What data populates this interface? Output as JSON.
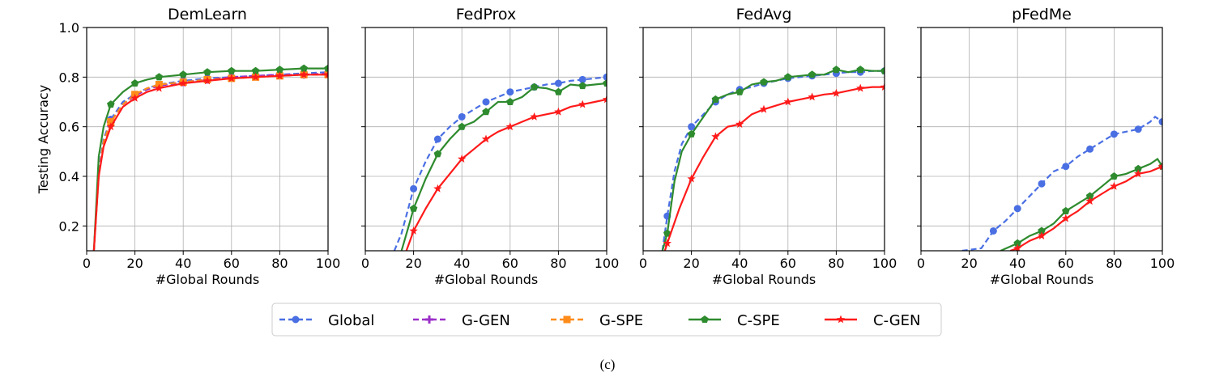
{
  "caption": "(c)",
  "colors": {
    "Global": "#4a6fe3",
    "G-GEN": "#9b2fc9",
    "G-SPE": "#ff8c1a",
    "C-SPE": "#2e8b2e",
    "C-GEN": "#ff1a1a"
  },
  "legend": {
    "placement": "bottom-center",
    "items": [
      {
        "name": "Global",
        "dash": true,
        "marker": "circle"
      },
      {
        "name": "G-GEN",
        "dash": true,
        "marker": "plus"
      },
      {
        "name": "G-SPE",
        "dash": true,
        "marker": "square"
      },
      {
        "name": "C-SPE",
        "dash": false,
        "marker": "pentagon"
      },
      {
        "name": "C-GEN",
        "dash": false,
        "marker": "star"
      }
    ]
  },
  "chart_data": [
    {
      "type": "line",
      "title": "DemLearn",
      "xlabel": "#Global Rounds",
      "ylabel": "Testing Accuracy",
      "xlim": [
        0,
        100
      ],
      "ylim": [
        0.1,
        1.0
      ],
      "xticks": [
        "0",
        "20",
        "40",
        "60",
        "80",
        "100"
      ],
      "yticks": [
        "0.2",
        "0.4",
        "0.6",
        "0.8",
        "1.0"
      ],
      "grid": true,
      "series": [
        {
          "name": "Global",
          "points": [
            [
              3,
              0.1
            ],
            [
              5,
              0.42
            ],
            [
              7,
              0.55
            ],
            [
              10,
              0.63
            ],
            [
              15,
              0.7
            ],
            [
              20,
              0.73
            ],
            [
              25,
              0.755
            ],
            [
              30,
              0.77
            ],
            [
              40,
              0.785
            ],
            [
              50,
              0.795
            ],
            [
              60,
              0.8
            ],
            [
              70,
              0.805
            ],
            [
              80,
              0.81
            ],
            [
              90,
              0.815
            ],
            [
              100,
              0.82
            ]
          ]
        },
        {
          "name": "G-GEN",
          "points": [
            [
              3,
              0.1
            ],
            [
              5,
              0.42
            ],
            [
              7,
              0.54
            ],
            [
              10,
              0.62
            ],
            [
              15,
              0.69
            ],
            [
              20,
              0.725
            ],
            [
              25,
              0.75
            ],
            [
              30,
              0.765
            ],
            [
              40,
              0.78
            ],
            [
              50,
              0.79
            ],
            [
              60,
              0.8
            ],
            [
              70,
              0.805
            ],
            [
              80,
              0.81
            ],
            [
              90,
              0.81
            ],
            [
              100,
              0.815
            ]
          ]
        },
        {
          "name": "G-SPE",
          "points": [
            [
              3,
              0.1
            ],
            [
              5,
              0.4
            ],
            [
              7,
              0.54
            ],
            [
              10,
              0.62
            ],
            [
              15,
              0.69
            ],
            [
              20,
              0.73
            ],
            [
              25,
              0.755
            ],
            [
              30,
              0.77
            ],
            [
              40,
              0.78
            ],
            [
              50,
              0.79
            ],
            [
              60,
              0.795
            ],
            [
              70,
              0.8
            ],
            [
              80,
              0.805
            ],
            [
              90,
              0.81
            ],
            [
              100,
              0.81
            ]
          ]
        },
        {
          "name": "C-SPE",
          "points": [
            [
              3,
              0.1
            ],
            [
              5,
              0.48
            ],
            [
              7,
              0.6
            ],
            [
              10,
              0.69
            ],
            [
              15,
              0.74
            ],
            [
              20,
              0.775
            ],
            [
              25,
              0.79
            ],
            [
              30,
              0.8
            ],
            [
              40,
              0.81
            ],
            [
              50,
              0.82
            ],
            [
              60,
              0.825
            ],
            [
              70,
              0.825
            ],
            [
              80,
              0.83
            ],
            [
              90,
              0.835
            ],
            [
              100,
              0.835
            ]
          ]
        },
        {
          "name": "C-GEN",
          "points": [
            [
              3,
              0.1
            ],
            [
              5,
              0.4
            ],
            [
              7,
              0.52
            ],
            [
              10,
              0.6
            ],
            [
              15,
              0.68
            ],
            [
              20,
              0.715
            ],
            [
              25,
              0.74
            ],
            [
              30,
              0.755
            ],
            [
              40,
              0.775
            ],
            [
              50,
              0.785
            ],
            [
              60,
              0.795
            ],
            [
              70,
              0.8
            ],
            [
              80,
              0.805
            ],
            [
              90,
              0.81
            ],
            [
              100,
              0.81
            ]
          ]
        }
      ]
    },
    {
      "type": "line",
      "title": "FedProx",
      "xlabel": "#Global Rounds",
      "xlim": [
        0,
        100
      ],
      "ylim": [
        0.1,
        1.0
      ],
      "xticks": [
        "0",
        "20",
        "40",
        "60",
        "80",
        "100"
      ],
      "grid": true,
      "series": [
        {
          "name": "Global",
          "points": [
            [
              12,
              0.1
            ],
            [
              15,
              0.17
            ],
            [
              20,
              0.35
            ],
            [
              25,
              0.46
            ],
            [
              30,
              0.55
            ],
            [
              35,
              0.6
            ],
            [
              40,
              0.64
            ],
            [
              45,
              0.67
            ],
            [
              50,
              0.7
            ],
            [
              55,
              0.72
            ],
            [
              60,
              0.74
            ],
            [
              65,
              0.75
            ],
            [
              70,
              0.76
            ],
            [
              75,
              0.77
            ],
            [
              80,
              0.775
            ],
            [
              85,
              0.785
            ],
            [
              90,
              0.79
            ],
            [
              95,
              0.795
            ],
            [
              100,
              0.8
            ]
          ]
        },
        {
          "name": "C-SPE",
          "points": [
            [
              15,
              0.1
            ],
            [
              18,
              0.2
            ],
            [
              20,
              0.27
            ],
            [
              25,
              0.39
            ],
            [
              30,
              0.49
            ],
            [
              35,
              0.55
            ],
            [
              40,
              0.6
            ],
            [
              45,
              0.62
            ],
            [
              50,
              0.66
            ],
            [
              55,
              0.7
            ],
            [
              60,
              0.7
            ],
            [
              65,
              0.72
            ],
            [
              70,
              0.76
            ],
            [
              75,
              0.755
            ],
            [
              80,
              0.74
            ],
            [
              85,
              0.77
            ],
            [
              90,
              0.765
            ],
            [
              95,
              0.77
            ],
            [
              100,
              0.775
            ]
          ]
        },
        {
          "name": "C-GEN",
          "points": [
            [
              17,
              0.1
            ],
            [
              20,
              0.18
            ],
            [
              25,
              0.27
            ],
            [
              30,
              0.35
            ],
            [
              35,
              0.41
            ],
            [
              40,
              0.47
            ],
            [
              45,
              0.51
            ],
            [
              50,
              0.55
            ],
            [
              55,
              0.58
            ],
            [
              60,
              0.6
            ],
            [
              65,
              0.62
            ],
            [
              70,
              0.64
            ],
            [
              75,
              0.65
            ],
            [
              80,
              0.66
            ],
            [
              85,
              0.68
            ],
            [
              90,
              0.69
            ],
            [
              95,
              0.7
            ],
            [
              100,
              0.71
            ]
          ]
        }
      ]
    },
    {
      "type": "line",
      "title": "FedAvg",
      "xlabel": "#Global Rounds",
      "xlim": [
        0,
        100
      ],
      "ylim": [
        0.1,
        1.0
      ],
      "xticks": [
        "0",
        "20",
        "40",
        "60",
        "80",
        "100"
      ],
      "grid": true,
      "series": [
        {
          "name": "Global",
          "points": [
            [
              8,
              0.1
            ],
            [
              10,
              0.24
            ],
            [
              13,
              0.42
            ],
            [
              16,
              0.53
            ],
            [
              20,
              0.6
            ],
            [
              25,
              0.65
            ],
            [
              30,
              0.7
            ],
            [
              35,
              0.73
            ],
            [
              40,
              0.75
            ],
            [
              45,
              0.76
            ],
            [
              50,
              0.775
            ],
            [
              55,
              0.785
            ],
            [
              60,
              0.795
            ],
            [
              65,
              0.8
            ],
            [
              70,
              0.805
            ],
            [
              75,
              0.81
            ],
            [
              80,
              0.815
            ],
            [
              85,
              0.82
            ],
            [
              90,
              0.82
            ],
            [
              95,
              0.825
            ],
            [
              100,
              0.825
            ]
          ]
        },
        {
          "name": "C-SPE",
          "points": [
            [
              8,
              0.1
            ],
            [
              10,
              0.17
            ],
            [
              13,
              0.38
            ],
            [
              16,
              0.5
            ],
            [
              20,
              0.57
            ],
            [
              25,
              0.64
            ],
            [
              30,
              0.71
            ],
            [
              35,
              0.73
            ],
            [
              40,
              0.74
            ],
            [
              45,
              0.77
            ],
            [
              50,
              0.78
            ],
            [
              55,
              0.785
            ],
            [
              60,
              0.8
            ],
            [
              65,
              0.805
            ],
            [
              70,
              0.81
            ],
            [
              75,
              0.81
            ],
            [
              80,
              0.83
            ],
            [
              85,
              0.82
            ],
            [
              90,
              0.83
            ],
            [
              95,
              0.825
            ],
            [
              100,
              0.825
            ]
          ]
        },
        {
          "name": "C-GEN",
          "points": [
            [
              9,
              0.1
            ],
            [
              10,
              0.13
            ],
            [
              15,
              0.27
            ],
            [
              20,
              0.39
            ],
            [
              25,
              0.48
            ],
            [
              30,
              0.56
            ],
            [
              35,
              0.6
            ],
            [
              40,
              0.61
            ],
            [
              45,
              0.65
            ],
            [
              50,
              0.67
            ],
            [
              55,
              0.685
            ],
            [
              60,
              0.7
            ],
            [
              65,
              0.71
            ],
            [
              70,
              0.72
            ],
            [
              75,
              0.73
            ],
            [
              80,
              0.735
            ],
            [
              85,
              0.745
            ],
            [
              90,
              0.755
            ],
            [
              95,
              0.76
            ],
            [
              100,
              0.76
            ]
          ]
        }
      ]
    },
    {
      "type": "line",
      "title": "pFedMe",
      "xlabel": "#Global Rounds",
      "xlim": [
        0,
        100
      ],
      "ylim": [
        0.1,
        1.0
      ],
      "xticks": [
        "0",
        "20",
        "40",
        "60",
        "80",
        "100"
      ],
      "grid": true,
      "series": [
        {
          "name": "Global",
          "points": [
            [
              17,
              0.1
            ],
            [
              25,
              0.11
            ],
            [
              30,
              0.18
            ],
            [
              35,
              0.22
            ],
            [
              40,
              0.27
            ],
            [
              45,
              0.32
            ],
            [
              50,
              0.37
            ],
            [
              55,
              0.42
            ],
            [
              60,
              0.44
            ],
            [
              65,
              0.48
            ],
            [
              70,
              0.51
            ],
            [
              75,
              0.54
            ],
            [
              80,
              0.57
            ],
            [
              85,
              0.58
            ],
            [
              90,
              0.59
            ],
            [
              95,
              0.62
            ],
            [
              97,
              0.64
            ],
            [
              100,
              0.62
            ]
          ]
        },
        {
          "name": "C-SPE",
          "points": [
            [
              33,
              0.1
            ],
            [
              40,
              0.13
            ],
            [
              45,
              0.16
            ],
            [
              50,
              0.18
            ],
            [
              55,
              0.21
            ],
            [
              60,
              0.26
            ],
            [
              65,
              0.29
            ],
            [
              70,
              0.32
            ],
            [
              75,
              0.36
            ],
            [
              80,
              0.4
            ],
            [
              85,
              0.41
            ],
            [
              90,
              0.43
            ],
            [
              95,
              0.45
            ],
            [
              98,
              0.47
            ],
            [
              100,
              0.44
            ]
          ]
        },
        {
          "name": "C-GEN",
          "points": [
            [
              37,
              0.1
            ],
            [
              40,
              0.11
            ],
            [
              45,
              0.14
            ],
            [
              50,
              0.16
            ],
            [
              55,
              0.19
            ],
            [
              60,
              0.23
            ],
            [
              65,
              0.26
            ],
            [
              70,
              0.3
            ],
            [
              75,
              0.33
            ],
            [
              80,
              0.36
            ],
            [
              85,
              0.38
            ],
            [
              90,
              0.41
            ],
            [
              95,
              0.42
            ],
            [
              100,
              0.44
            ]
          ]
        }
      ]
    }
  ]
}
